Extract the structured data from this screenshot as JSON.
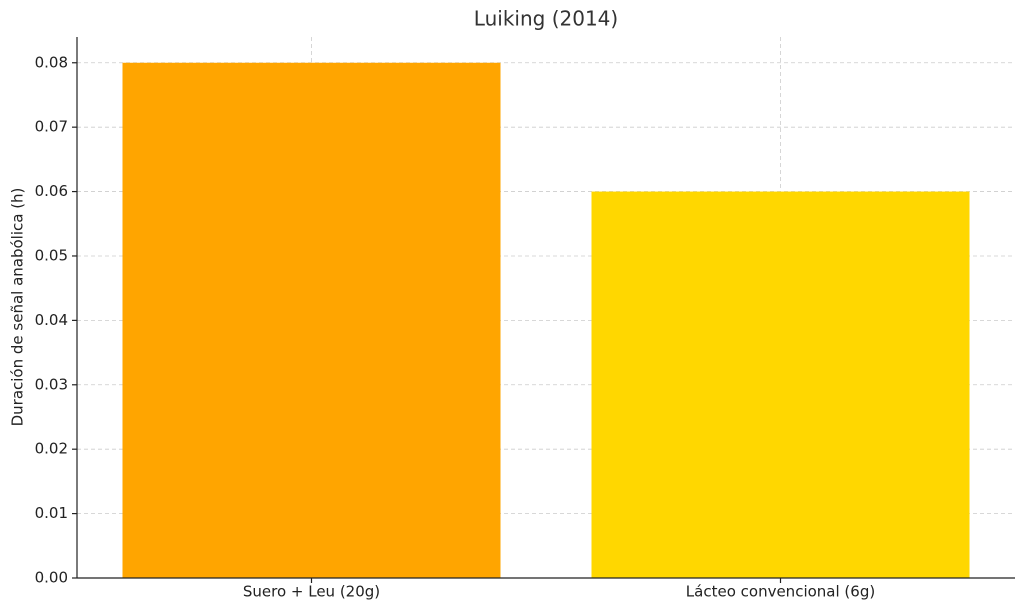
{
  "chart_data": {
    "type": "bar",
    "title": "Luiking (2014)",
    "y_label": "Duración de señal anabólica (h)",
    "categories": [
      "Suero + Leu (20g)",
      "Lácteo convencional (6g)"
    ],
    "values": [
      0.08,
      0.06
    ],
    "colors": [
      "#FFA500",
      "#FFD700"
    ],
    "ylim": [
      0,
      0.084
    ],
    "yticks": [
      {
        "value": 0,
        "label": "0.00"
      },
      0.01,
      0.02,
      0.03,
      0.04,
      0.05,
      0.06,
      0.07,
      0.08
    ],
    "grid": true
  }
}
